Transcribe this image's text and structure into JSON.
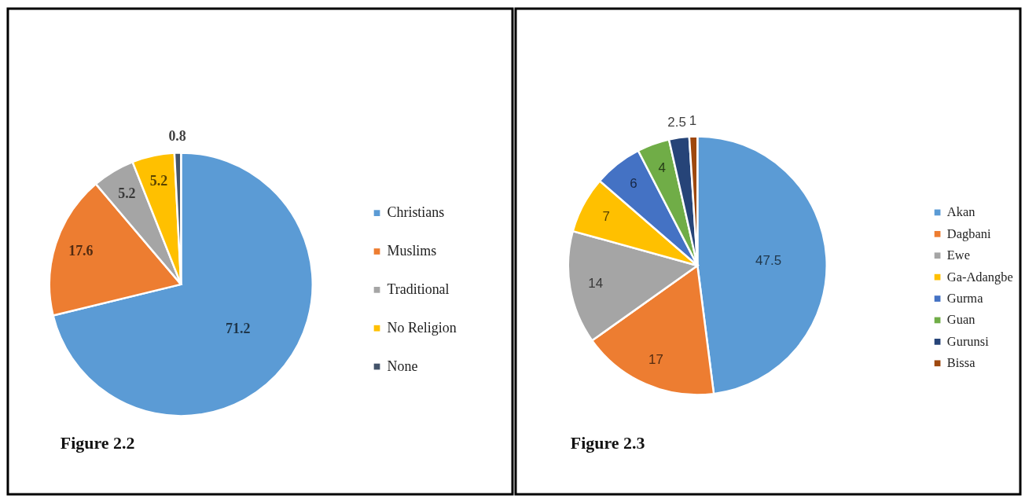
{
  "chart_data": [
    {
      "type": "pie",
      "categories": [
        "Christians",
        "Muslims",
        "Traditional",
        "No Religion",
        "None"
      ],
      "values": [
        71.2,
        17.6,
        5.2,
        5.2,
        0.8
      ],
      "colors": [
        "#5b9bd5",
        "#ed7d31",
        "#a5a5a5",
        "#ffc000",
        "#44546a"
      ],
      "data_labels": true,
      "legend": "right",
      "annotations": [
        "Figure 2.2"
      ]
    },
    {
      "type": "pie",
      "categories": [
        "Akan",
        "Dagbani",
        "Ewe",
        "Ga-Adangbe",
        "Gurma",
        "Guan",
        "Gurunsi",
        "Bissa"
      ],
      "values": [
        47.5,
        17,
        14,
        7,
        6,
        4,
        2.5,
        1
      ],
      "colors": [
        "#5b9bd5",
        "#ed7d31",
        "#a5a5a5",
        "#ffc000",
        "#4472c4",
        "#70ad47",
        "#264478",
        "#9e480e"
      ],
      "data_labels": true,
      "legend": "right",
      "annotations": [
        "Figure 2.3"
      ]
    }
  ]
}
